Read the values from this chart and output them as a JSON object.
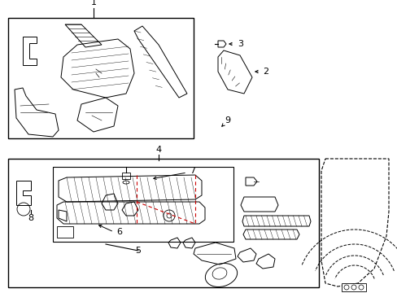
{
  "bg_color": "#ffffff",
  "line_color": "#000000",
  "red_color": "#cc0000",
  "fig_width": 4.89,
  "fig_height": 3.6,
  "dpi": 100
}
